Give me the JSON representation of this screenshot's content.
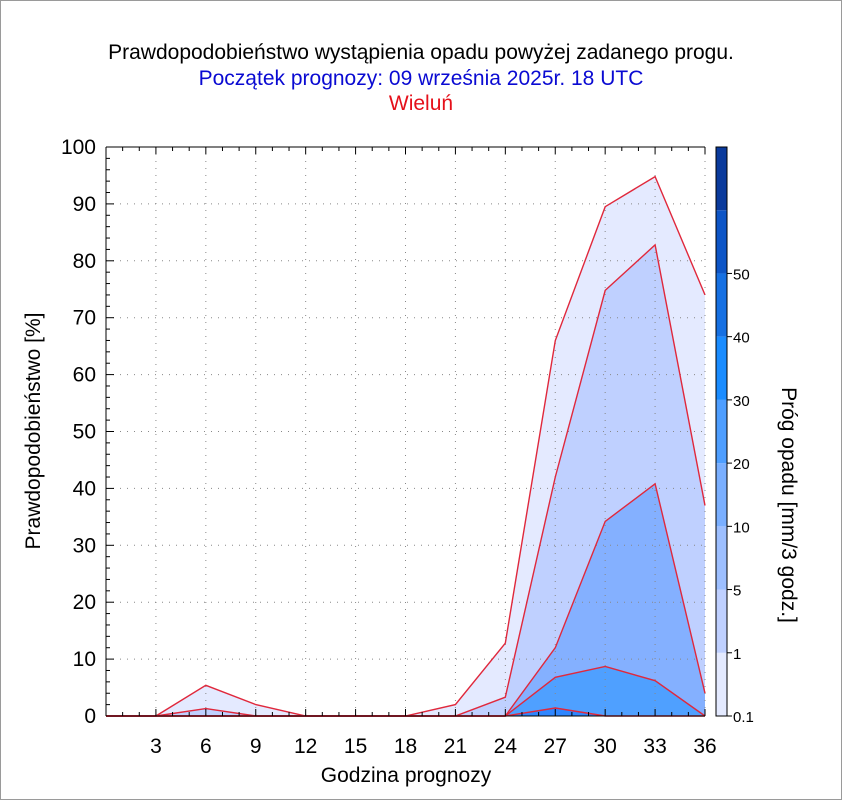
{
  "header": {
    "title": "Prawdopodobieństwo wystąpienia opadu powyżej zadanego progu.",
    "subtitle": "Początek prognozy: 09 września 2025r. 18 UTC",
    "station": "Wieluń"
  },
  "colors": {
    "title": "#000000",
    "subtitle": "#0a0ad2",
    "station": "#e5101a",
    "series_line": "#e0283c"
  },
  "chart_data": {
    "type": "area",
    "title": "Prawdopodobieństwo wystąpienia opadu powyżej zadanego progu.",
    "xlabel": "Godzina prognozy",
    "ylabel": "Prawdopodobieństwo [%]",
    "colorbar_label": "Próg opadu [mm/3 godz.]",
    "xlim": [
      0,
      36
    ],
    "ylim": [
      0,
      100
    ],
    "x": [
      0,
      3,
      6,
      9,
      12,
      15,
      18,
      21,
      24,
      27,
      30,
      33,
      36
    ],
    "x_ticks": [
      3,
      6,
      9,
      12,
      15,
      18,
      21,
      24,
      27,
      30,
      33,
      36
    ],
    "y_ticks": [
      0,
      10,
      20,
      30,
      40,
      50,
      60,
      70,
      80,
      90,
      100
    ],
    "grid": true,
    "series": [
      {
        "threshold": 0.1,
        "color": "#e4eaff",
        "values": [
          0,
          0,
          5.4,
          2.0,
          0,
          0,
          0,
          2.0,
          12.8,
          66,
          89.5,
          94.8,
          74
        ]
      },
      {
        "threshold": 1,
        "color": "#bfd0ff",
        "values": [
          0,
          0,
          1.3,
          0,
          0,
          0,
          0,
          0,
          3.3,
          42,
          74.8,
          82.8,
          37
        ]
      },
      {
        "threshold": 5,
        "color": "#84b0ff",
        "values": [
          0,
          0,
          0,
          0,
          0,
          0,
          0,
          0,
          0,
          12,
          34.2,
          40.8,
          4
        ]
      },
      {
        "threshold": 10,
        "color": "#4fa0ff",
        "values": [
          0,
          0,
          0,
          0,
          0,
          0,
          0,
          0,
          0,
          6.8,
          8.7,
          6.2,
          0
        ]
      },
      {
        "threshold": 20,
        "color": "#2e86ff",
        "values": [
          0,
          0,
          0,
          0,
          0,
          0,
          0,
          0,
          0,
          1.4,
          0,
          0,
          0
        ]
      }
    ],
    "colorbar": {
      "labels": [
        "0.1",
        "1",
        "5",
        "10",
        "20",
        "30",
        "40",
        "50"
      ],
      "colors": [
        "#e4eaff",
        "#bfd0ff",
        "#9dbfff",
        "#7aafff",
        "#4e9eff",
        "#1a8cff",
        "#1670e2",
        "#0d55c6",
        "#0a3a9c"
      ]
    }
  }
}
